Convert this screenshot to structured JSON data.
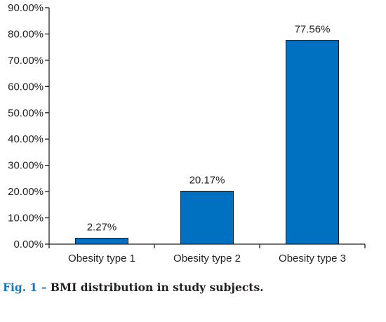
{
  "chart_data": {
    "type": "bar",
    "categories": [
      "Obesity type 1",
      "Obesity type 2",
      "Obesity type 3"
    ],
    "values": [
      2.27,
      20.17,
      77.56
    ],
    "value_labels": [
      "2.27%",
      "20.17%",
      "77.56%"
    ],
    "ylim": [
      0,
      90
    ],
    "yticks": [
      0,
      10,
      20,
      30,
      40,
      50,
      60,
      70,
      80,
      90
    ],
    "ytick_labels": [
      "0.00%",
      "10.00%",
      "20.00%",
      "30.00%",
      "40.00%",
      "50.00%",
      "60.00%",
      "70.00%",
      "80.00%",
      "90.00%"
    ],
    "grid": false,
    "legend": "none",
    "bar_color": "#0070c0",
    "bar_edge_color": "#1a1a1a"
  },
  "caption": {
    "fig_label": "Fig. 1 –",
    "text": "BMI distribution in study subjects."
  },
  "colors": {
    "caption_accent": "#1b75bb",
    "axis": "#231f20"
  }
}
